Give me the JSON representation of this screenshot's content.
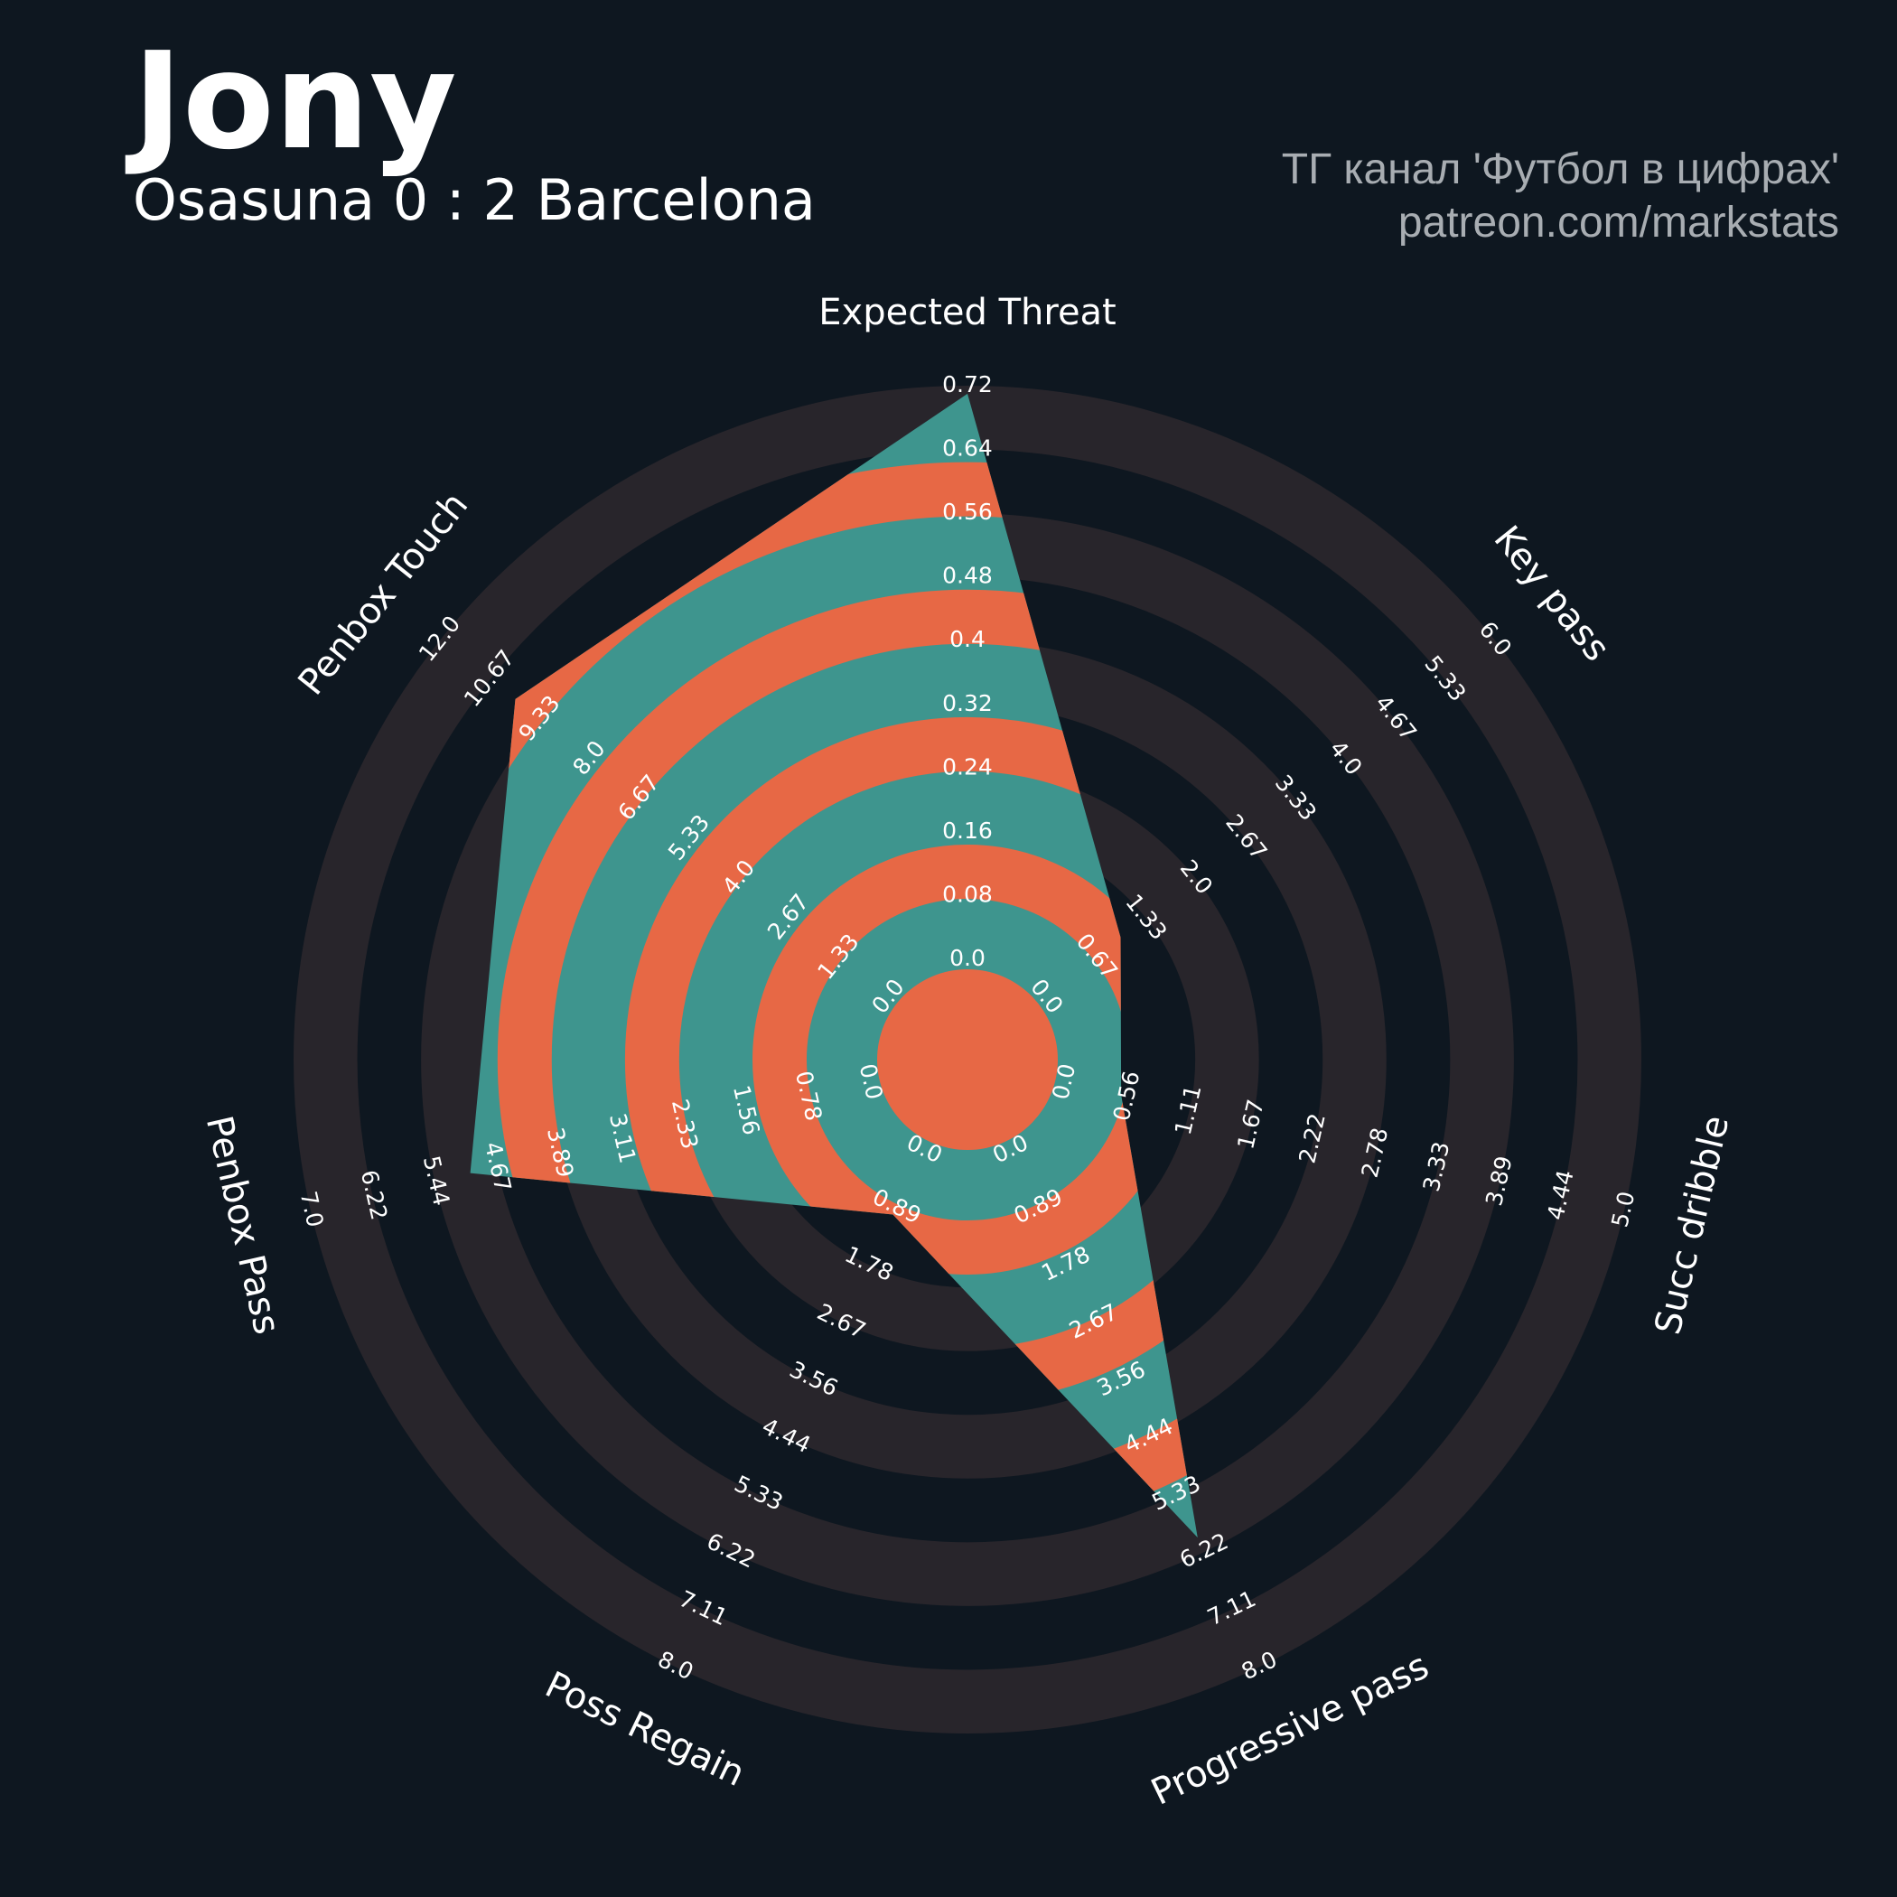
{
  "chart_data": {
    "type": "radar",
    "title": "Jony",
    "subtitle": "Osasuna 0 : 2 Barcelona",
    "credits": [
      "ТГ канал 'Футбол в цифрах'",
      "patreon.com/markstats"
    ],
    "categories": [
      "Expected Threat",
      "Key pass",
      "Succ dribble",
      "Progressive pass",
      "Poss Regain",
      "Penbox Pass",
      "Penbox Touch"
    ],
    "values": [
      0.71,
      1,
      0.5,
      6,
      1,
      5,
      10
    ],
    "colors": {
      "bands": [
        "#3e958e",
        "#e76845"
      ],
      "rings": "#28252b",
      "background": "#0e1720"
    },
    "axes": [
      {
        "ylim": [
          0,
          0.72
        ],
        "yticks": [
          {
            "value": 0,
            "label": "0.0"
          },
          0.08,
          0.16,
          0.24,
          0.32,
          0.4,
          0.48,
          0.56,
          0.64,
          0.72
        ]
      },
      {
        "ylim": [
          0,
          6
        ],
        "yticks": [
          {
            "value": 0,
            "label": "0.0"
          },
          0.67,
          1.33,
          {
            "value": 2,
            "label": "2.0"
          },
          2.67,
          3.33,
          {
            "value": 4,
            "label": "4.0"
          },
          4.67,
          5.33,
          {
            "value": 6,
            "label": "6.0"
          }
        ]
      },
      {
        "ylim": [
          0,
          5
        ],
        "yticks": [
          {
            "value": 0,
            "label": "0.0"
          },
          0.56,
          1.11,
          1.67,
          2.22,
          2.78,
          3.33,
          3.89,
          4.44,
          {
            "value": 5,
            "label": "5.0"
          }
        ]
      },
      {
        "ylim": [
          0,
          8
        ],
        "yticks": [
          {
            "value": 0,
            "label": "0.0"
          },
          0.89,
          1.78,
          2.67,
          3.56,
          4.44,
          5.33,
          6.22,
          7.11,
          {
            "value": 8,
            "label": "8.0"
          }
        ]
      },
      {
        "ylim": [
          0,
          8
        ],
        "yticks": [
          {
            "value": 0,
            "label": "0.0"
          },
          0.89,
          1.78,
          2.67,
          3.56,
          4.44,
          5.33,
          6.22,
          7.11,
          {
            "value": 8,
            "label": "8.0"
          }
        ]
      },
      {
        "ylim": [
          0,
          7
        ],
        "yticks": [
          {
            "value": 0,
            "label": "0.0"
          },
          0.78,
          1.56,
          2.33,
          3.11,
          3.89,
          4.67,
          5.44,
          6.22,
          {
            "value": 7,
            "label": "7.0"
          }
        ]
      },
      {
        "ylim": [
          0,
          12
        ],
        "yticks": [
          {
            "value": 0,
            "label": "0.0"
          },
          1.33,
          2.67,
          {
            "value": 4,
            "label": "4.0"
          },
          5.33,
          6.67,
          {
            "value": 8,
            "label": "8.0"
          },
          9.33,
          10.67,
          {
            "value": 12,
            "label": "12.0"
          }
        ]
      }
    ]
  }
}
